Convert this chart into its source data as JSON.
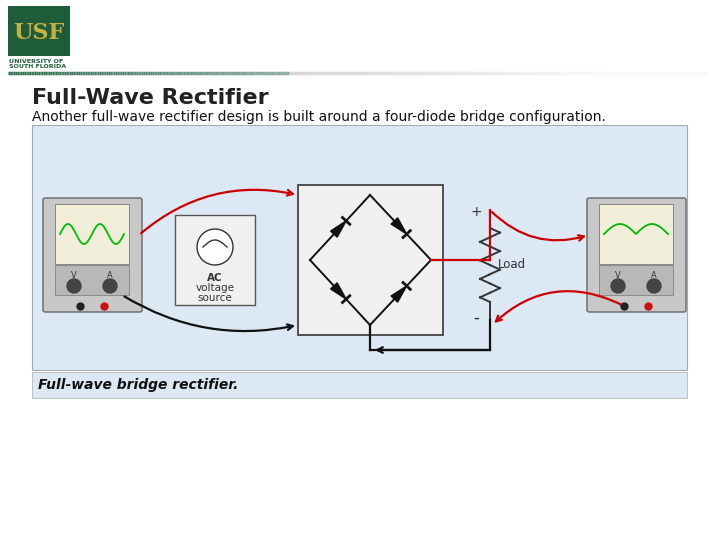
{
  "bg_color": "#ffffff",
  "title": "Full-Wave Rectifier",
  "subtitle": "Another full-wave rectifier design is built around a four-diode bridge configuration.",
  "caption": "Full-wave bridge rectifier.",
  "title_fontsize": 16,
  "subtitle_fontsize": 10,
  "caption_fontsize": 10,
  "usf_box_color": "#1e5c3a",
  "usf_text_color": "#c8b040",
  "usf_sub_color": "#1e5c3a",
  "divider_color_left": "#2d6b4f",
  "divider_color_right": "#b0b0b0",
  "diagram_bg": "#dce9f5",
  "red_wire": "#cc0000",
  "black_wire": "#111111"
}
